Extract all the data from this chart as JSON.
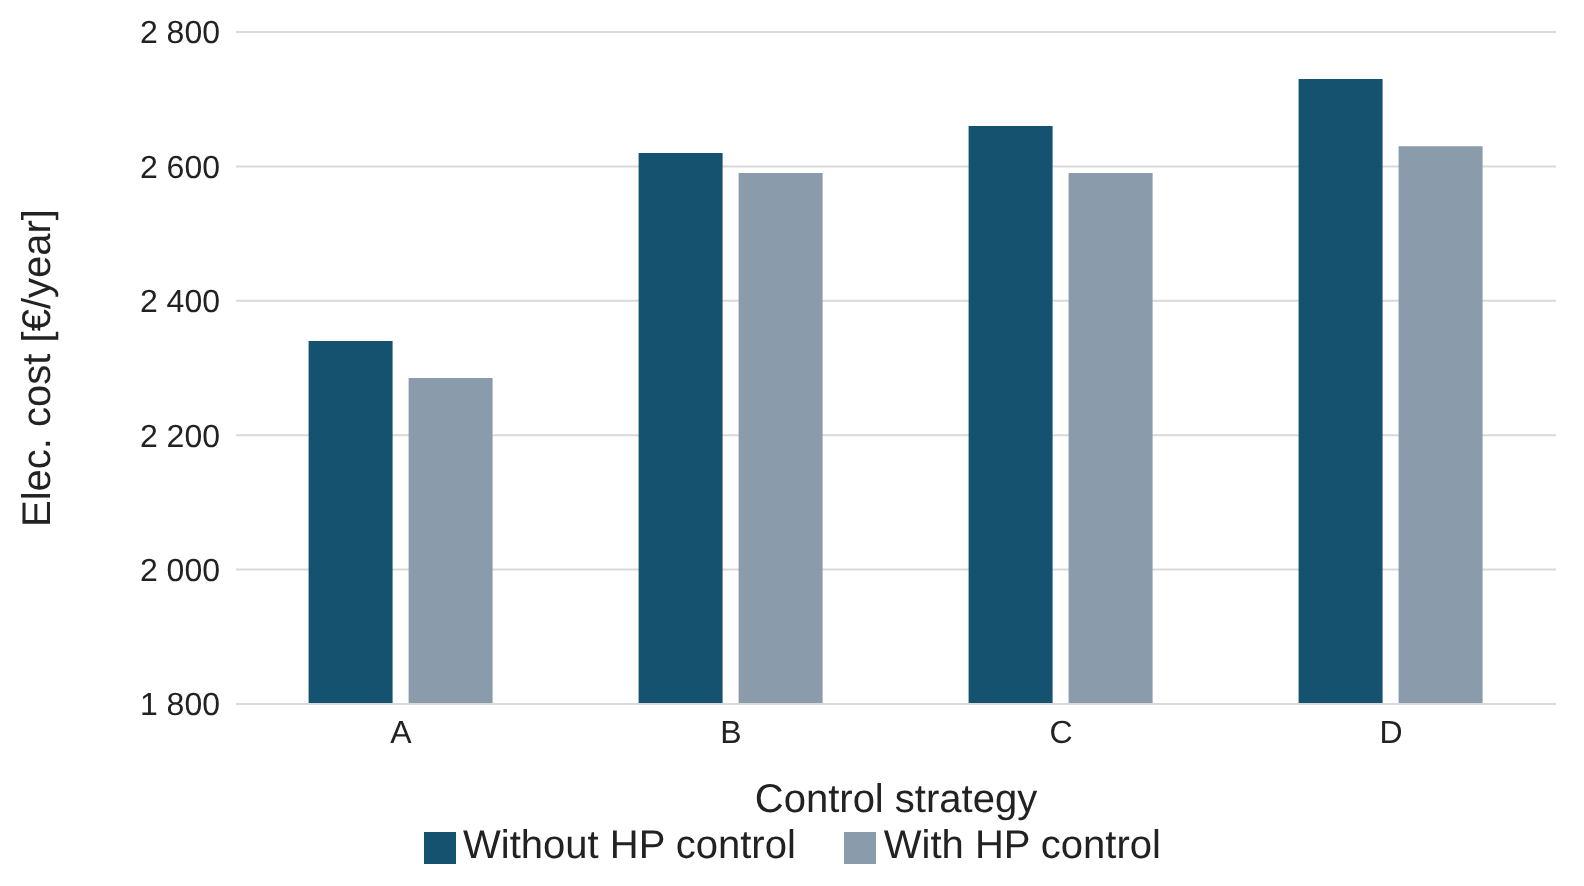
{
  "chart_data": {
    "type": "bar",
    "xlabel": "Control strategy",
    "ylabel": "Elec. cost [€/year]",
    "categories": [
      "A",
      "B",
      "C",
      "D"
    ],
    "series": [
      {
        "name": "Without HP control",
        "color": "#14526f",
        "values": [
          2340,
          2620,
          2660,
          2730
        ]
      },
      {
        "name": "With HP control",
        "color": "#8a9bab",
        "values": [
          2285,
          2590,
          2590,
          2630
        ]
      }
    ],
    "ylim": [
      1800,
      2800
    ],
    "yticks": [
      {
        "value": 1800,
        "label": "1 800"
      },
      {
        "value": 2000,
        "label": "2 000"
      },
      {
        "value": 2200,
        "label": "2 200"
      },
      {
        "value": 2400,
        "label": "2 400"
      },
      {
        "value": 2600,
        "label": "2 600"
      },
      {
        "value": 2800,
        "label": "2 800"
      }
    ],
    "grid": "y",
    "legend": "bottom"
  }
}
